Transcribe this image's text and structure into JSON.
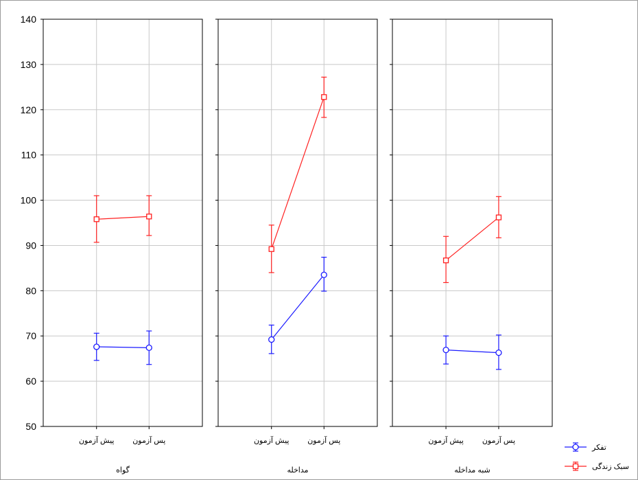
{
  "chart_data": {
    "type": "line",
    "ylim": [
      50,
      140
    ],
    "yticks": [
      50,
      60,
      70,
      80,
      90,
      100,
      110,
      120,
      130,
      140
    ],
    "grid": true,
    "categories": [
      "پیش آزمون",
      "پس آزمون"
    ],
    "panels": [
      {
        "group": "گواه",
        "series": [
          {
            "name": "تفکر",
            "values": [
              67.6,
              67.4
            ],
            "err_low": [
              64.6,
              63.7
            ],
            "err_high": [
              70.6,
              71.1
            ]
          },
          {
            "name": "سبک زندگی",
            "values": [
              95.8,
              96.4
            ],
            "err_low": [
              90.7,
              92.2
            ],
            "err_high": [
              101.0,
              101.0
            ]
          }
        ]
      },
      {
        "group": "مداخله",
        "series": [
          {
            "name": "تفکر",
            "values": [
              69.2,
              83.5
            ],
            "err_low": [
              66.1,
              79.9
            ],
            "err_high": [
              72.4,
              87.4
            ]
          },
          {
            "name": "سبک زندگی",
            "values": [
              89.2,
              122.8
            ],
            "err_low": [
              84.0,
              118.3
            ],
            "err_high": [
              94.5,
              127.2
            ]
          }
        ]
      },
      {
        "group": "شبه مداخله",
        "series": [
          {
            "name": "تفکر",
            "values": [
              66.9,
              66.3
            ],
            "err_low": [
              63.8,
              62.6
            ],
            "err_high": [
              70.0,
              70.2
            ]
          },
          {
            "name": "سبک زندگی",
            "values": [
              86.7,
              96.2
            ],
            "err_low": [
              81.8,
              91.7
            ],
            "err_high": [
              92.0,
              100.8
            ]
          }
        ]
      }
    ],
    "legend": {
      "placement": "bottom-right",
      "entries": [
        {
          "name": "تفکر",
          "color": "#0000ff",
          "marker": "circle"
        },
        {
          "name": "سبک زندگی",
          "color": "#ff0000",
          "marker": "square"
        }
      ]
    },
    "colors": {
      "thinking": "#1a1aff",
      "lifestyle": "#ff2020",
      "grid": "#c8c8c8",
      "axis": "#000000"
    }
  }
}
